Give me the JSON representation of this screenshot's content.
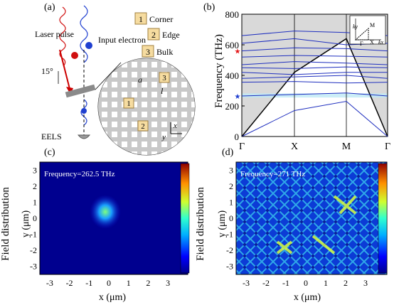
{
  "panels": {
    "a": {
      "label": "(a)",
      "laser": "Laser pulse",
      "input_electron": "Input electron",
      "angle": "15°",
      "eels": "EELS",
      "lattice_a": "a",
      "lattice_l": "l",
      "axis_x": "x",
      "axis_y": "y",
      "legend": [
        {
          "num": "1",
          "label": "Corner"
        },
        {
          "num": "2",
          "label": "Edge"
        },
        {
          "num": "3",
          "label": "Bulk"
        }
      ]
    },
    "b": {
      "label": "(b)",
      "ylabel": "Frequency (THz)",
      "yticks": [
        "0",
        "200",
        "400",
        "600",
        "800"
      ],
      "xticks": [
        "Γ",
        "X",
        "M",
        "Γ"
      ],
      "inset": {
        "kx": "kx",
        "ky": "ky",
        "gamma": "Γ",
        "x": "X",
        "m": "M"
      }
    },
    "c": {
      "label": "(c)",
      "annotation": "Frequency=262.5 THz",
      "ylabel": "y (μm)",
      "xlabel": "x (μm)",
      "colorbar_label": "Field distribution",
      "ticks": [
        "-3",
        "-2",
        "-1",
        "0",
        "1",
        "2",
        "3"
      ]
    },
    "d": {
      "label": "(d)",
      "annotation": "Frequency=271 THz",
      "ylabel": "y (μm)",
      "xlabel": "x (μm)",
      "colorbar_label": "Field distribution",
      "ticks": [
        "-3",
        "-2",
        "-1",
        "0",
        "1",
        "2",
        "3"
      ]
    }
  },
  "chart_data": [
    {
      "type": "line",
      "panel": "b",
      "ylabel": "Frequency (THz)",
      "ylim": [
        0,
        800
      ],
      "categories": [
        "Γ",
        "X",
        "M",
        "Γ"
      ],
      "series": [
        {
          "values": [
            0,
            420,
            640,
            0
          ]
        },
        {
          "values": [
            0,
            170,
            230,
            0
          ]
        },
        {
          "values": [
            265,
            275,
            285,
            265
          ]
        },
        {
          "values": [
            355,
            360,
            350,
            355
          ]
        },
        {
          "values": [
            380,
            390,
            400,
            380
          ]
        },
        {
          "values": [
            420,
            405,
            420,
            420
          ]
        },
        {
          "values": [
            450,
            445,
            455,
            450
          ]
        },
        {
          "values": [
            470,
            490,
            480,
            470
          ]
        },
        {
          "values": [
            520,
            530,
            525,
            520
          ]
        },
        {
          "values": [
            560,
            580,
            575,
            560
          ]
        },
        {
          "values": [
            610,
            640,
            600,
            610
          ]
        },
        {
          "values": [
            660,
            690,
            680,
            660
          ]
        }
      ],
      "markers": [
        {
          "symbol": "★",
          "color": "#e41a1c",
          "frequency": 560
        },
        {
          "symbol": "★",
          "color": "#1f3fd0",
          "frequency": 265
        }
      ]
    }
  ]
}
